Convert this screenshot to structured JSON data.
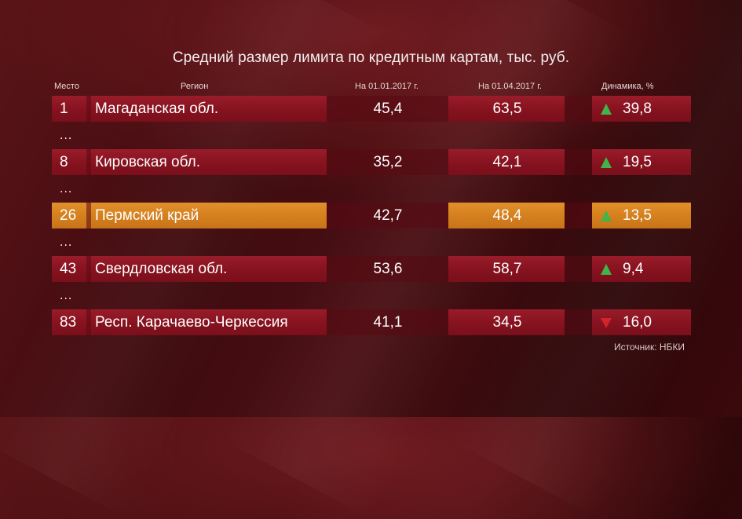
{
  "title": "Средний размер лимита по кредитным картам, тыс. руб.",
  "headers": {
    "rank": "Место",
    "region": "Регион",
    "date1": "На 01.01.2017 г.",
    "date2": "На 01.04.2017 г.",
    "change": "Динамика, %"
  },
  "ellipsis": "...",
  "rows": [
    {
      "rank": "1",
      "region": "Магаданская обл.",
      "v1": "45,4",
      "v2": "63,5",
      "change": "39,8",
      "dir": "up"
    },
    {
      "rank": "8",
      "region": "Кировская обл.",
      "v1": "35,2",
      "v2": "42,1",
      "change": "19,5",
      "dir": "up"
    },
    {
      "rank": "26",
      "region": "Пермский край",
      "v1": "42,7",
      "v2": "48,4",
      "change": "13,5",
      "dir": "up",
      "highlight": true
    },
    {
      "rank": "43",
      "region": "Свердловская обл.",
      "v1": "53,6",
      "v2": "58,7",
      "change": "9,4",
      "dir": "up"
    },
    {
      "rank": "83",
      "region": "Респ. Карачаево-Черкессия",
      "v1": "41,1",
      "v2": "34,5",
      "change": "16,0",
      "dir": "down"
    }
  ],
  "source": "Источник: НБКИ",
  "colors": {
    "row_red": "#8b1522",
    "row_highlight": "#d9861f",
    "arrow_up": "#3fb54a",
    "arrow_down": "#d3242c"
  },
  "chart_data": {
    "type": "table",
    "title": "Средний размер лимита по кредитным картам, тыс. руб.",
    "columns": [
      "Место",
      "Регион",
      "На 01.01.2017 г.",
      "На 01.04.2017 г.",
      "Динамика, %"
    ],
    "rows": [
      [
        1,
        "Магаданская обл.",
        45.4,
        63.5,
        39.8
      ],
      [
        8,
        "Кировская обл.",
        35.2,
        42.1,
        19.5
      ],
      [
        26,
        "Пермский край",
        42.7,
        48.4,
        13.5
      ],
      [
        43,
        "Свердловская обл.",
        53.6,
        58.7,
        9.4
      ],
      [
        83,
        "Респ. Карачаево-Черкессия",
        41.1,
        34.5,
        16.0
      ]
    ],
    "change_direction": [
      "up",
      "up",
      "up",
      "up",
      "down"
    ]
  }
}
